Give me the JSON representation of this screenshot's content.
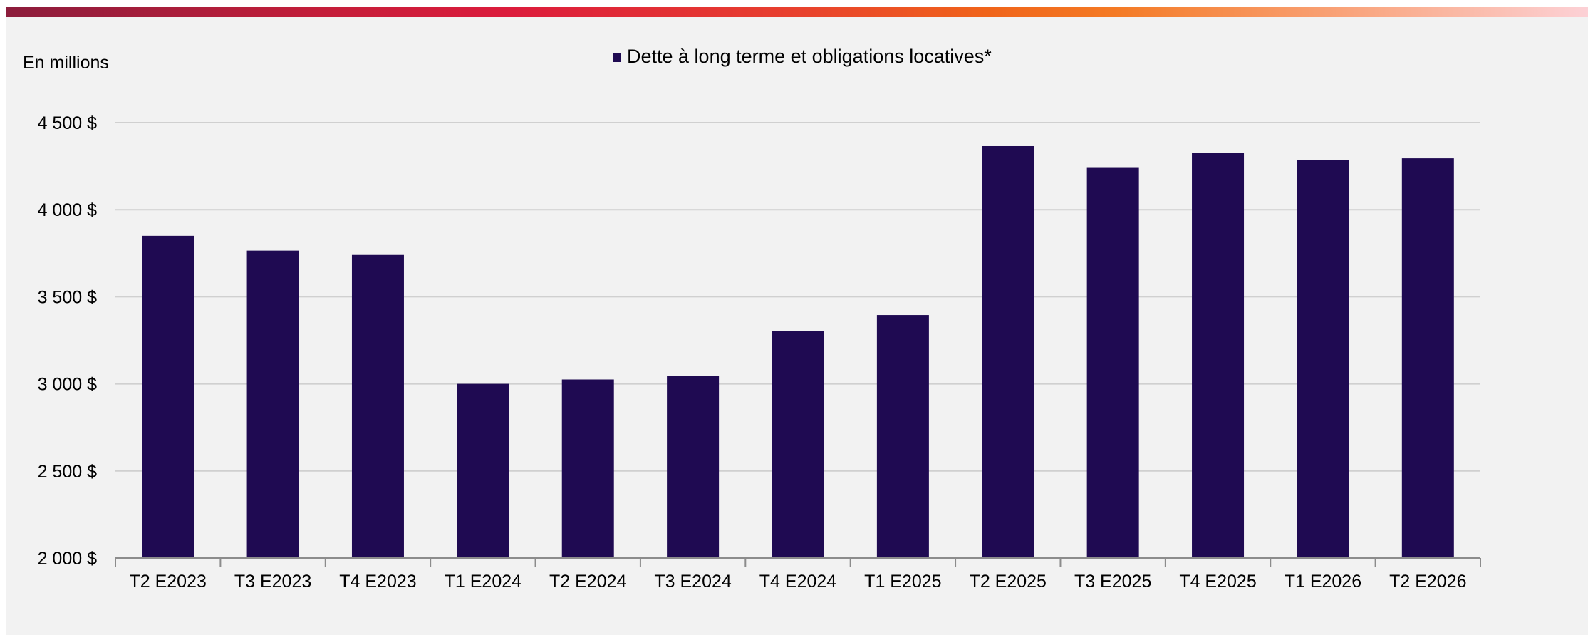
{
  "chart_data": {
    "type": "bar",
    "title": "",
    "unit_label": "En millions",
    "series": [
      {
        "name": "Dette à long terme et obligations locatives*",
        "color": "#1f0a52",
        "values": [
          3850,
          3765,
          3740,
          3000,
          3025,
          3045,
          3305,
          3395,
          4365,
          4240,
          4325,
          4285,
          4295
        ]
      }
    ],
    "categories": [
      "T2 E2023",
      "T3 E2023",
      "T4 E2023",
      "T1 E2024",
      "T2 E2024",
      "T3 E2024",
      "T4 E2024",
      "T1 E2025",
      "T2 E2025",
      "T3 E2025",
      "T4 E2025",
      "T1 E2026",
      "T2 E2026"
    ],
    "ylim": [
      2000,
      4500
    ],
    "y_ticks": [
      2000,
      2500,
      3000,
      3500,
      4000,
      4500
    ],
    "y_tick_labels": [
      "2 000 $",
      "2 500 $",
      "3 000 $",
      "3 500 $",
      "4 000 $",
      "4 500 $"
    ],
    "grid": true,
    "legend_position": "top-center"
  }
}
